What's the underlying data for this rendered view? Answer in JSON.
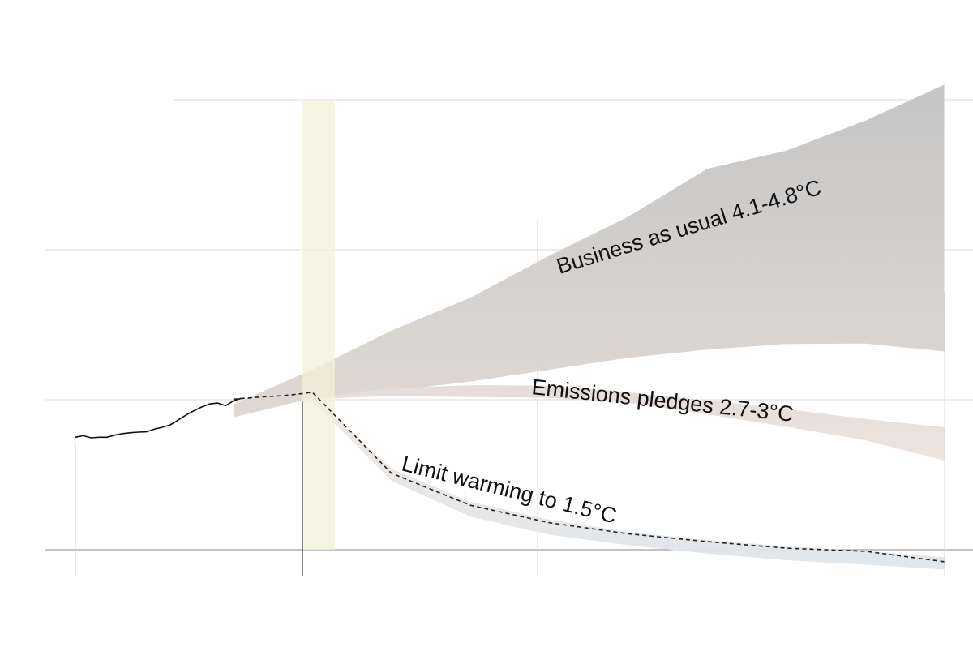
{
  "chart_data": {
    "type": "area",
    "title": "",
    "xlabel": "",
    "ylabel": "",
    "grid": true,
    "highlight_band": {
      "color": "#f3f0d8"
    },
    "historical": {
      "color": "#111111",
      "points": [
        [
          1990,
          37.5
        ],
        [
          1991,
          38.0
        ],
        [
          1992,
          37.3
        ],
        [
          1993,
          37.5
        ],
        [
          1994,
          37.5
        ],
        [
          1995,
          38.2
        ],
        [
          1996,
          38.7
        ],
        [
          1997,
          39.0
        ],
        [
          1998,
          39.2
        ],
        [
          1999,
          39.3
        ],
        [
          2000,
          40.2
        ],
        [
          2001,
          40.8
        ],
        [
          2002,
          41.6
        ],
        [
          2003,
          43.2
        ],
        [
          2004,
          44.9
        ],
        [
          2005,
          46.3
        ],
        [
          2006,
          47.6
        ],
        [
          2007,
          48.6
        ],
        [
          2008,
          48.9
        ],
        [
          2009,
          48.0
        ],
        [
          2010,
          49.6
        ],
        [
          2011,
          50.5
        ]
      ]
    },
    "scenarios": [
      {
        "name": "Business as usual 4.1-4.8°C",
        "color": "#c5c5c5",
        "fill_top": "#c2c2c2",
        "fill_bottom": "#ddd7d2",
        "upper": [
          [
            2010,
            48.5
          ],
          [
            2020,
            60
          ],
          [
            2030,
            73
          ],
          [
            2040,
            84
          ],
          [
            2050,
            98
          ],
          [
            2060,
            111
          ],
          [
            2070,
            127
          ],
          [
            2080,
            133
          ],
          [
            2090,
            143
          ],
          [
            2100,
            155
          ]
        ],
        "lower": [
          [
            2010,
            44.1
          ],
          [
            2020,
            50.5
          ],
          [
            2030,
            53
          ],
          [
            2040,
            56
          ],
          [
            2050,
            60
          ],
          [
            2060,
            64
          ],
          [
            2070,
            66.7
          ],
          [
            2080,
            68.6
          ],
          [
            2090,
            68.7
          ],
          [
            2100,
            66.1
          ]
        ]
      },
      {
        "name": "Emissions pledges 2.7-3°C",
        "color": "#e6ddd8",
        "fill_top": "#e3dbd7",
        "fill_bottom": "#ede3de",
        "upper": [
          [
            2020,
            50.8
          ],
          [
            2030,
            53.9
          ],
          [
            2040,
            54.8
          ],
          [
            2050,
            54.7
          ],
          [
            2060,
            52.5
          ],
          [
            2070,
            49.8
          ],
          [
            2080,
            46.9
          ],
          [
            2090,
            43.6
          ],
          [
            2100,
            40.8
          ]
        ],
        "lower": [
          [
            2020,
            50.2
          ],
          [
            2030,
            51.3
          ],
          [
            2040,
            50.9
          ],
          [
            2050,
            50.6
          ],
          [
            2060,
            48.9
          ],
          [
            2070,
            45.1
          ],
          [
            2080,
            41.0
          ],
          [
            2090,
            36.5
          ],
          [
            2100,
            29.7
          ]
        ]
      },
      {
        "name": "Limit warming to 1.5°C",
        "color": "#efe4dc",
        "fill_top": "#f2e6dc",
        "fill_bottom": "#dfe6ec",
        "upper": [
          [
            2020,
            51.0
          ],
          [
            2030,
            27
          ],
          [
            2040,
            16
          ],
          [
            2050,
            10
          ],
          [
            2060,
            6
          ],
          [
            2070,
            3.2
          ],
          [
            2080,
            1.2
          ],
          [
            2090,
            -0.5
          ],
          [
            2100,
            -2.5
          ]
        ],
        "lower": [
          [
            2020,
            49.5
          ],
          [
            2030,
            23
          ],
          [
            2040,
            11
          ],
          [
            2050,
            5
          ],
          [
            2060,
            1.5
          ],
          [
            2070,
            -1.3
          ],
          [
            2080,
            -3.5
          ],
          [
            2090,
            -5.0
          ],
          [
            2100,
            -6.6
          ]
        ]
      }
    ],
    "pathway_15": {
      "color": "#222222",
      "dash": "5,4",
      "points": [
        [
          2010,
          50.2
        ],
        [
          2012,
          50.6
        ],
        [
          2014,
          51.0
        ],
        [
          2016,
          51.3
        ],
        [
          2018,
          51.8
        ],
        [
          2020,
          52.5
        ],
        [
          2030,
          25.5
        ],
        [
          2040,
          14.8
        ],
        [
          2050,
          9
        ],
        [
          2060,
          5.3
        ],
        [
          2070,
          2.7
        ],
        [
          2080,
          0.5
        ],
        [
          2090,
          -0.5
        ],
        [
          2100,
          -4.0
        ]
      ]
    }
  }
}
